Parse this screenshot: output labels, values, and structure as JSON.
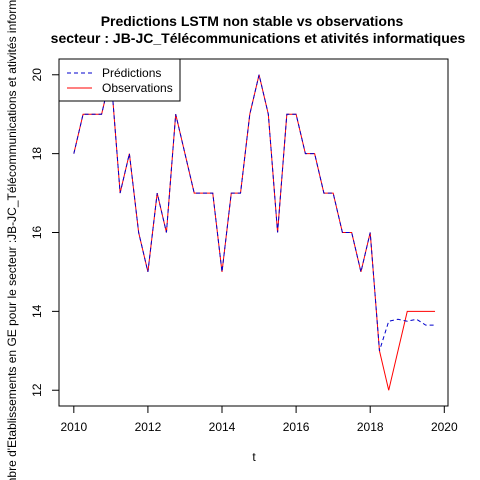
{
  "chart_data": {
    "type": "line",
    "title": "Predictions LSTM non stable vs observations",
    "subtitle": "secteur : JB-JC_Télécommunications et ativités informatiques",
    "xlabel": "t",
    "ylabel": "Nombre d'Etablissements en GE pour le secteur :JB-JC_Télécommunications et ativités informatiques",
    "xlim": [
      2009.6,
      2020.1
    ],
    "ylim": [
      11.6,
      20.4
    ],
    "xticks": [
      2010,
      2012,
      2014,
      2016,
      2018,
      2020
    ],
    "yticks": [
      12,
      14,
      16,
      18,
      20
    ],
    "grid": false,
    "legend_position": "top-left",
    "series": [
      {
        "name": "Observations",
        "color": "#ff0000",
        "style": "solid",
        "x": [
          2010.0,
          2010.25,
          2010.5,
          2010.75,
          2011.0,
          2011.25,
          2011.5,
          2011.75,
          2012.0,
          2012.25,
          2012.5,
          2012.75,
          2013.0,
          2013.25,
          2013.5,
          2013.75,
          2014.0,
          2014.25,
          2014.5,
          2014.75,
          2015.0,
          2015.25,
          2015.5,
          2015.75,
          2016.0,
          2016.25,
          2016.5,
          2016.75,
          2017.0,
          2017.25,
          2017.5,
          2017.75,
          2018.0,
          2018.25,
          2018.5,
          2018.75,
          2019.0,
          2019.25,
          2019.5,
          2019.75
        ],
        "y": [
          18,
          19,
          19,
          19,
          20,
          17,
          18,
          16,
          15,
          17,
          16,
          19,
          18,
          17,
          17,
          17,
          15,
          17,
          17,
          19,
          20,
          19,
          16,
          19,
          19,
          18,
          18,
          17,
          17,
          16,
          16,
          15,
          16,
          13,
          12,
          13,
          14,
          14,
          14,
          14
        ]
      },
      {
        "name": "Prédictions",
        "color": "#0000cc",
        "style": "dashed",
        "x": [
          2010.0,
          2010.25,
          2010.5,
          2010.75,
          2011.0,
          2011.25,
          2011.5,
          2011.75,
          2012.0,
          2012.25,
          2012.5,
          2012.75,
          2013.0,
          2013.25,
          2013.5,
          2013.75,
          2014.0,
          2014.25,
          2014.5,
          2014.75,
          2015.0,
          2015.25,
          2015.5,
          2015.75,
          2016.0,
          2016.25,
          2016.5,
          2016.75,
          2017.0,
          2017.25,
          2017.5,
          2017.75,
          2018.0,
          2018.25,
          2018.5,
          2018.75,
          2019.0,
          2019.25,
          2019.5,
          2019.75
        ],
        "y": [
          18,
          19,
          19,
          19,
          20,
          17,
          18,
          16,
          15,
          17,
          16,
          19,
          18,
          17,
          17,
          17,
          15,
          17,
          17,
          19,
          20,
          19,
          16,
          19,
          19,
          18,
          18,
          17,
          17,
          16,
          16,
          15,
          16,
          13,
          13.75,
          13.8,
          13.75,
          13.8,
          13.65,
          13.65
        ]
      }
    ]
  }
}
